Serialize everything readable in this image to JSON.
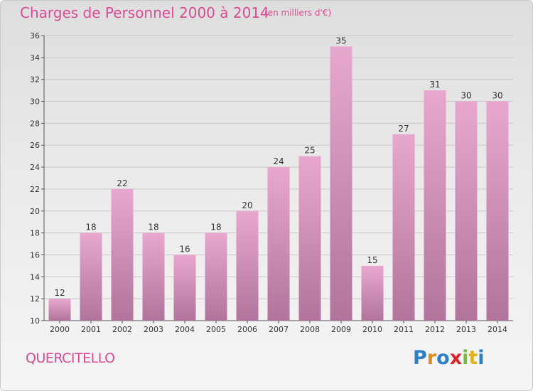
{
  "header": {
    "title": "Charges de Personnel 2000 à 2014",
    "subtitle": "(en milliers d'€)"
  },
  "footer": {
    "commune": "QUERCITELLO",
    "logo_text": "Proxiti",
    "logo_colors": [
      "#2f7fc4",
      "#e08a1e",
      "#2f7fc4",
      "#d9242b",
      "#7ab648",
      "#e0b21e",
      "#2f7fc4"
    ]
  },
  "colors": {
    "bar_top": "#e8a7ce",
    "bar_bottom": "#b2749c",
    "axis": "#555555",
    "grid": "#c8c8c8"
  },
  "chart_data": {
    "type": "bar",
    "categories": [
      "2000",
      "2001",
      "2002",
      "2003",
      "2004",
      "2005",
      "2006",
      "2007",
      "2008",
      "2009",
      "2010",
      "2011",
      "2012",
      "2013",
      "2014"
    ],
    "values": [
      12,
      18,
      22,
      18,
      16,
      18,
      20,
      24,
      25,
      35,
      15,
      27,
      31,
      30,
      30
    ],
    "ylim": [
      10,
      36
    ],
    "yticks": [
      10,
      12,
      14,
      16,
      18,
      20,
      22,
      24,
      26,
      28,
      30,
      32,
      34,
      36
    ],
    "grid": true,
    "data_labels": true
  }
}
